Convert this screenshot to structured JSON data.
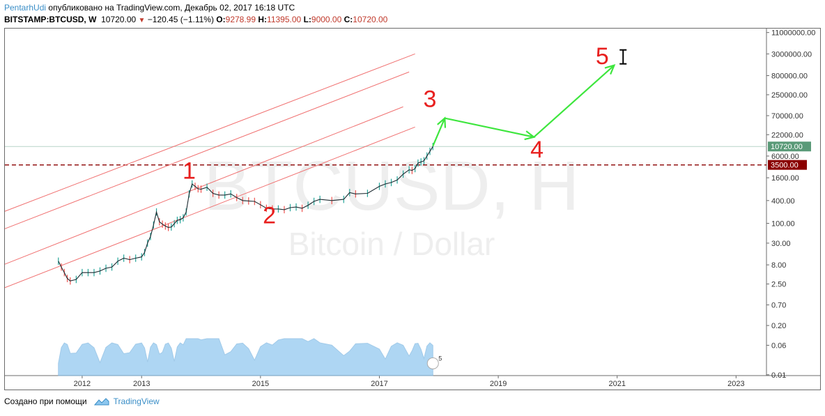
{
  "header": {
    "author": "PentarhUdi",
    "published_text": "опубликовано на TradingView.com, Декабрь 02, 2017 16:18 UTC",
    "symbol": "BITSTAMP:BTCUSD, W",
    "last": "10720.00",
    "change": "−120.45 (−1.11%)",
    "o_label": "O:",
    "o_value": "9278.99",
    "h_label": "H:",
    "h_value": "11395.00",
    "l_label": "L:",
    "l_value": "9000.00",
    "c_label": "C:",
    "c_value": "10720.00"
  },
  "footer": {
    "created_text": "Создано при помощи",
    "brand": "TradingView"
  },
  "chart_data": {
    "type": "line",
    "watermark_symbol": "BTCUSD, H",
    "watermark_name": "Bitcoin / Dollar",
    "x_ticks": [
      "2012",
      "2013",
      "2015",
      "2017",
      "2019",
      "2021",
      "2023"
    ],
    "x_tick_values": [
      2012,
      2013,
      2015,
      2017,
      2019,
      2021,
      2023
    ],
    "xlim": [
      2010.7,
      2023.5
    ],
    "y_ticks": [
      "11000000.00",
      "3000000.00",
      "800000.00",
      "250000.00",
      "70000.00",
      "22000.00",
      "6000.00",
      "1600.00",
      "400.00",
      "100.00",
      "30.00",
      "8.00",
      "2.50",
      "0.70",
      "0.20",
      "0.06",
      "0.01"
    ],
    "y_tick_values": [
      11000000,
      3000000,
      800000,
      250000,
      70000,
      22000,
      6000,
      1600,
      400,
      100,
      30,
      8,
      2.5,
      0.7,
      0.2,
      0.06,
      0.01
    ],
    "y_scale": "log",
    "ylim": [
      0.0095,
      14000000
    ],
    "last_price_label": "10720.00",
    "last_price": 10720,
    "level_label": "3500.00",
    "level": 3500,
    "price": {
      "x": [
        2011.6,
        2011.65,
        2011.7,
        2011.75,
        2011.8,
        2011.9,
        2012.0,
        2012.1,
        2012.2,
        2012.3,
        2012.4,
        2012.5,
        2012.6,
        2012.7,
        2012.8,
        2012.9,
        2013.0,
        2013.05,
        2013.1,
        2013.15,
        2013.2,
        2013.25,
        2013.3,
        2013.35,
        2013.4,
        2013.45,
        2013.5,
        2013.55,
        2013.6,
        2013.65,
        2013.7,
        2013.75,
        2013.8,
        2013.85,
        2013.9,
        2013.95,
        2014.0,
        2014.1,
        2014.2,
        2014.3,
        2014.4,
        2014.5,
        2014.6,
        2014.7,
        2014.8,
        2014.9,
        2015.0,
        2015.1,
        2015.2,
        2015.3,
        2015.4,
        2015.5,
        2015.6,
        2015.7,
        2015.8,
        2015.9,
        2016.0,
        2016.2,
        2016.4,
        2016.5,
        2016.6,
        2016.8,
        2017.0,
        2017.1,
        2017.2,
        2017.3,
        2017.4,
        2017.5,
        2017.55,
        2017.6,
        2017.65,
        2017.7,
        2017.75,
        2017.8,
        2017.85,
        2017.9
      ],
      "y": [
        10,
        7,
        5,
        3.5,
        3,
        3.3,
        5,
        5,
        5,
        5.5,
        6.5,
        7,
        10,
        12,
        11,
        12,
        13,
        17,
        30,
        45,
        90,
        200,
        110,
        95,
        85,
        78,
        80,
        98,
        120,
        125,
        140,
        200,
        600,
        1100,
        950,
        820,
        800,
        900,
        620,
        560,
        560,
        600,
        480,
        400,
        390,
        380,
        310,
        250,
        240,
        240,
        230,
        260,
        270,
        250,
        300,
        380,
        430,
        400,
        430,
        650,
        600,
        620,
        950,
        1100,
        1200,
        1400,
        2000,
        2600,
        2500,
        2800,
        3900,
        4200,
        4500,
        6000,
        8000,
        10720
      ]
    },
    "channel_lines": [
      {
        "x": [
          2010.67,
          2017.6
        ],
        "y": [
          200,
          3000000
        ]
      },
      {
        "x": [
          2010.57,
          2017.5
        ],
        "y": [
          60,
          1000000
        ]
      },
      {
        "x": [
          2010.47,
          2017.4
        ],
        "y": [
          6,
          120000
        ]
      },
      {
        "x": [
          2010.7,
          2017.6
        ],
        "y": [
          2,
          35000
        ]
      }
    ],
    "wave_path": {
      "x": [
        2017.9,
        2018.1,
        2019.6,
        2020.95
      ],
      "y": [
        11000,
        60000,
        19000,
        1500000
      ]
    },
    "wave_labels": [
      {
        "text": "1",
        "x": 2013.8,
        "y": 1500
      },
      {
        "text": "2",
        "x": 2015.15,
        "y": 100
      },
      {
        "text": "3",
        "x": 2017.85,
        "y": 120000
      },
      {
        "text": "4",
        "x": 2019.65,
        "y": 5500
      },
      {
        "text": "5",
        "x": 2020.75,
        "y": 1600000
      }
    ],
    "volume_scale": "5",
    "colors": {
      "channel": "#f07070",
      "wave": "#3ee63e",
      "wave_label": "#e8201f",
      "level": "#8b0000",
      "last_price": "#5a9a78",
      "candle_up": "#26a69a",
      "candle_down": "#ef5350",
      "volume_area": "#8cc6ee"
    }
  }
}
